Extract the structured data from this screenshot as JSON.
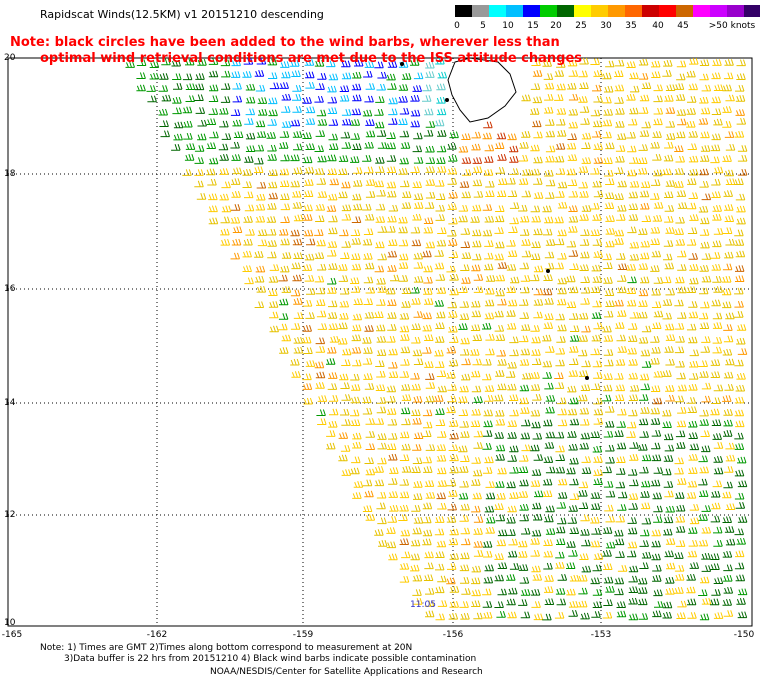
{
  "title": "Rapidscat Winds(12.5KM) v1 20151210 descending",
  "note_line1": "Note: black circles have been added to the wind barbs, wherever less than",
  "note_line2": "optimal wind retrieval conditions are met due to the ISS attitude changes",
  "color_scale": {
    "labels": [
      "0",
      "5",
      "10",
      "15",
      "20",
      "25",
      "30",
      "35",
      "40",
      "45",
      ">50 knots"
    ],
    "colors": [
      "#000000",
      "#999999",
      "#00ffff",
      "#00bfff",
      "#0000ff",
      "#00cc00",
      "#006600",
      "#ffff00",
      "#ffcc00",
      "#ff9900",
      "#ff6600",
      "#cc0000",
      "#ff0000",
      "#cc6600",
      "#ff00ff",
      "#cc00ff",
      "#9900cc",
      "#330066"
    ]
  },
  "lat_labels": [
    "20",
    "18",
    "16",
    "14",
    "12",
    "10"
  ],
  "lon_labels": [
    "-165",
    "-162",
    "-159",
    "-156",
    "-153",
    "-150"
  ],
  "time_label": "11:05",
  "footer": {
    "line1": "Note: 1) Times are GMT 2)Times along bottom correspond to measurement at 20N",
    "line2": "3)Data buffer is 22 hrs from 20151210 4) Black wind barbs indicate possible contamination",
    "line3": "NOAA/NESDIS/Center for Satellite Applications and Research"
  }
}
